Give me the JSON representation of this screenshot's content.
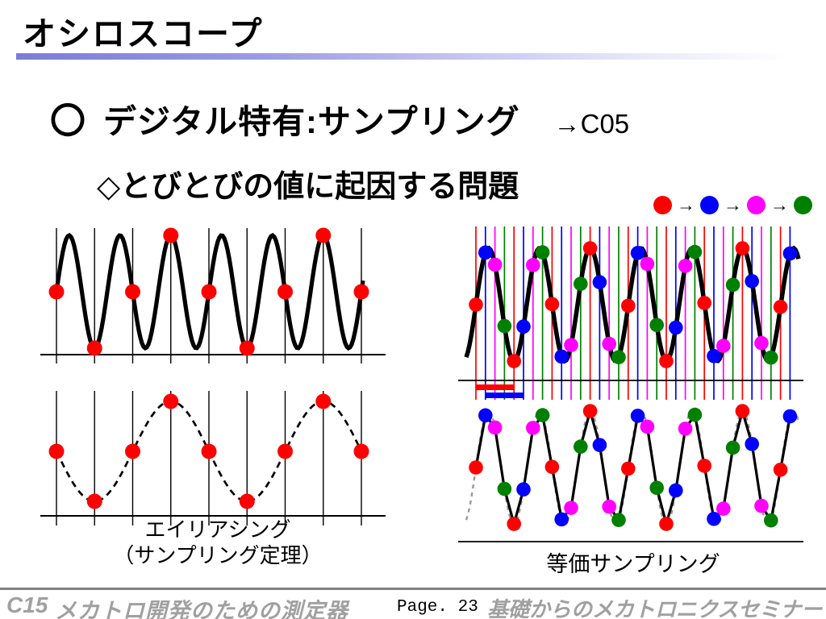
{
  "slide": {
    "title": "オシロスコープ",
    "heading_bullet": "〇",
    "heading": "デジタル特有:サンプリング",
    "heading_ref": "→C05",
    "subheading": "◇とびとびの値に起因する問題"
  },
  "legend": {
    "arrow": "→",
    "order_colors": [
      "#ff0000",
      "#0000ff",
      "#ff00ff",
      "#008000"
    ],
    "order_names": [
      "red-pass",
      "blue-pass",
      "magenta-pass",
      "green-pass"
    ]
  },
  "chart_data": [
    {
      "id": "aliasing-acquisition",
      "type": "line",
      "title": "",
      "waveform": "fast sine wave",
      "signal_cycles": 6,
      "num_sample_lines": 9,
      "sample_interval_in_signal_periods": 0.75,
      "sampled_values_normalized": [
        0,
        -1,
        0,
        1,
        0,
        -1,
        0,
        1,
        0
      ],
      "sample_dot_color": "#ff0000",
      "waveform_color": "#000000",
      "grid_line_color": "#000000"
    },
    {
      "id": "aliasing-apparent-wave",
      "type": "line",
      "style": "dashed",
      "waveform": "slow aliased sine wave",
      "apparent_cycles": 2,
      "num_sample_lines": 9,
      "sampled_values_normalized": [
        0,
        -1,
        0,
        1,
        0,
        -1,
        0,
        1,
        0
      ],
      "sample_dot_color": "#ff0000",
      "waveform_color": "#000000",
      "caption_lines": [
        "エイリアシング",
        "（サンプリング定理）"
      ]
    },
    {
      "id": "equivalent-sampling-acquisition",
      "type": "line",
      "waveform": "fast sine wave with four interleaved sampling combs",
      "signal_cycles": 6,
      "num_samples": 34,
      "samples_per_cycle": 5.339,
      "phase_colors": [
        "#ff0000",
        "#0000ff",
        "#ff00ff",
        "#008000"
      ],
      "waveform_color": "#000000",
      "interval_bar_colors": [
        "#ff0000",
        "#0000ff"
      ]
    },
    {
      "id": "equivalent-sampling-reconstruction",
      "type": "line",
      "waveform": "reconstructed waveform from reordered samples",
      "signal_cycles": 6,
      "num_samples": 34,
      "samples_per_cycle": 5.339,
      "phase_colors": [
        "#ff0000",
        "#0000ff",
        "#ff00ff",
        "#008000"
      ],
      "ideal_waveform_color": "#999999",
      "reconstruction_color": "#000000",
      "caption": "等価サンプリング"
    }
  ],
  "footer": {
    "course_code": "C15",
    "course_title": "メカトロ開発のための測定器",
    "page_label": "Page. 23",
    "seminar_title": "基礎からのメカトロニクスセミナー"
  }
}
